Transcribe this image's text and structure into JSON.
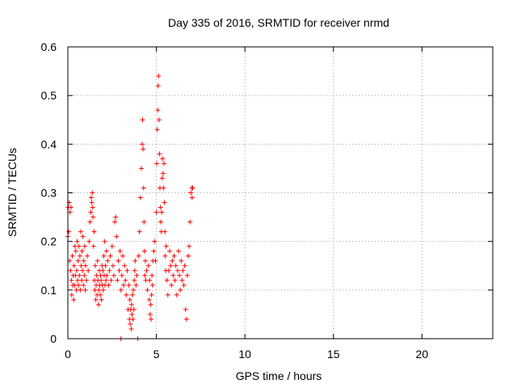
{
  "chart_data": {
    "type": "scatter",
    "title": "Day 335 of 2016, SRMTID for receiver nrmd",
    "xlabel": "GPS time / hours",
    "ylabel": "SRMTID / TECUs",
    "xlim": [
      0,
      24
    ],
    "ylim": [
      0,
      0.6
    ],
    "xticks": [
      0,
      5,
      10,
      15,
      20
    ],
    "xtick_labels": [
      "0",
      "5",
      "10",
      "15",
      "20"
    ],
    "yticks": [
      0,
      0.1,
      0.2,
      0.3,
      0.4,
      0.5,
      0.6
    ],
    "ytick_labels": [
      "0",
      "0.1",
      "0.2",
      "0.3",
      "0.4",
      "0.5",
      "0.6"
    ],
    "grid": true,
    "marker": "+",
    "color": "#ff0000",
    "series": [
      {
        "name": "nrmd",
        "x": [
          0.0,
          0.02,
          0.05,
          0.08,
          0.1,
          0.12,
          0.15,
          0.18,
          0.2,
          0.22,
          0.25,
          0.28,
          0.3,
          0.33,
          0.35,
          0.38,
          0.4,
          0.42,
          0.45,
          0.48,
          0.5,
          0.53,
          0.55,
          0.58,
          0.6,
          0.63,
          0.65,
          0.68,
          0.7,
          0.73,
          0.75,
          0.78,
          0.8,
          0.83,
          0.85,
          0.88,
          0.9,
          0.93,
          0.95,
          0.98,
          1.0,
          1.05,
          1.1,
          1.15,
          1.2,
          1.25,
          1.3,
          1.32,
          1.35,
          1.38,
          1.4,
          1.42,
          1.45,
          1.48,
          1.5,
          1.53,
          1.55,
          1.58,
          1.6,
          1.63,
          1.65,
          1.68,
          1.7,
          1.73,
          1.75,
          1.78,
          1.8,
          1.83,
          1.85,
          1.88,
          1.9,
          1.93,
          1.95,
          1.98,
          2.0,
          2.03,
          2.05,
          2.08,
          2.1,
          2.13,
          2.15,
          2.18,
          2.2,
          2.25,
          2.3,
          2.35,
          2.4,
          2.45,
          2.5,
          2.55,
          2.6,
          2.65,
          2.7,
          2.75,
          2.8,
          2.85,
          2.9,
          2.95,
          3.0,
          3.0,
          3.05,
          3.1,
          3.15,
          3.2,
          3.25,
          3.3,
          3.35,
          3.4,
          3.45,
          3.48,
          3.5,
          3.52,
          3.55,
          3.58,
          3.6,
          3.62,
          3.65,
          3.68,
          3.7,
          3.73,
          3.75,
          3.78,
          3.8,
          3.85,
          3.9,
          3.95,
          4.0,
          4.05,
          4.1,
          4.15,
          4.2,
          4.22,
          4.25,
          4.28,
          4.3,
          4.33,
          4.35,
          4.38,
          4.4,
          4.45,
          4.5,
          4.55,
          4.6,
          4.62,
          4.65,
          4.68,
          4.7,
          4.73,
          4.75,
          4.78,
          4.8,
          4.85,
          4.9,
          4.95,
          5.0,
          5.02,
          5.05,
          5.08,
          5.1,
          5.12,
          5.15,
          5.18,
          5.2,
          5.23,
          5.25,
          5.28,
          5.3,
          5.33,
          5.35,
          5.38,
          5.4,
          5.43,
          5.45,
          5.48,
          5.5,
          5.53,
          5.55,
          5.6,
          5.65,
          5.7,
          5.75,
          5.8,
          5.85,
          5.9,
          5.95,
          6.0,
          6.05,
          6.1,
          6.15,
          6.2,
          6.25,
          6.3,
          6.35,
          6.4,
          6.45,
          6.5,
          6.55,
          6.6,
          6.65,
          6.7,
          6.75,
          6.8,
          6.85,
          6.9,
          6.95,
          7.0,
          7.02,
          7.05
        ],
        "y": [
          0.21,
          0.27,
          0.22,
          0.28,
          0.16,
          0.26,
          0.14,
          0.27,
          0.12,
          0.09,
          0.17,
          0.11,
          0.13,
          0.08,
          0.15,
          0.11,
          0.19,
          0.13,
          0.18,
          0.1,
          0.14,
          0.2,
          0.12,
          0.16,
          0.11,
          0.19,
          0.13,
          0.17,
          0.1,
          0.22,
          0.15,
          0.12,
          0.18,
          0.14,
          0.21,
          0.11,
          0.16,
          0.13,
          0.19,
          0.1,
          0.15,
          0.12,
          0.17,
          0.14,
          0.2,
          0.24,
          0.26,
          0.29,
          0.28,
          0.3,
          0.27,
          0.25,
          0.19,
          0.22,
          0.12,
          0.1,
          0.15,
          0.08,
          0.11,
          0.13,
          0.09,
          0.16,
          0.12,
          0.07,
          0.1,
          0.14,
          0.11,
          0.09,
          0.13,
          0.12,
          0.08,
          0.15,
          0.11,
          0.14,
          0.1,
          0.17,
          0.13,
          0.2,
          0.11,
          0.15,
          0.12,
          0.18,
          0.13,
          0.16,
          0.11,
          0.14,
          0.17,
          0.12,
          0.19,
          0.15,
          0.13,
          0.24,
          0.25,
          0.21,
          0.12,
          0.16,
          0.14,
          0.18,
          0.0,
          0.1,
          0.13,
          0.17,
          0.11,
          0.15,
          0.12,
          0.09,
          0.14,
          0.06,
          0.11,
          0.04,
          0.08,
          0.03,
          0.06,
          0.02,
          0.07,
          0.05,
          0.09,
          0.04,
          0.1,
          0.06,
          0.12,
          0.14,
          0.16,
          0.11,
          0.13,
          0.0,
          0.17,
          0.22,
          0.29,
          0.35,
          0.4,
          0.45,
          0.39,
          0.31,
          0.24,
          0.18,
          0.13,
          0.16,
          0.12,
          0.14,
          0.1,
          0.15,
          0.08,
          0.12,
          0.05,
          0.07,
          0.04,
          0.09,
          0.13,
          0.11,
          0.16,
          0.18,
          0.2,
          0.16,
          0.26,
          0.36,
          0.43,
          0.47,
          0.52,
          0.54,
          0.45,
          0.38,
          0.31,
          0.27,
          0.24,
          0.22,
          0.26,
          0.33,
          0.37,
          0.34,
          0.31,
          0.36,
          0.28,
          0.22,
          0.17,
          0.14,
          0.19,
          0.12,
          0.09,
          0.14,
          0.18,
          0.15,
          0.11,
          0.16,
          0.13,
          0.17,
          0.12,
          0.15,
          0.09,
          0.14,
          0.18,
          0.13,
          0.1,
          0.16,
          0.12,
          0.14,
          0.11,
          0.15,
          0.06,
          0.04,
          0.13,
          0.17,
          0.19,
          0.24,
          0.3,
          0.31,
          0.29,
          0.31
        ]
      }
    ]
  }
}
